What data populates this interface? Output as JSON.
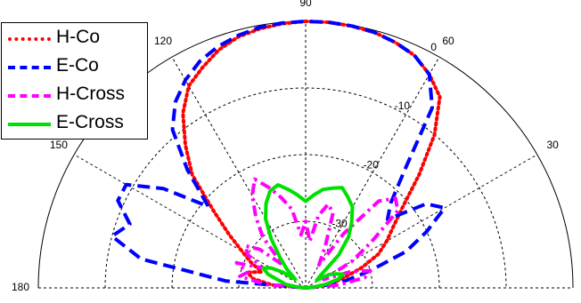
{
  "chart_data": {
    "type": "polar",
    "angle_ticks": [
      {
        "angle": 0,
        "label": "0"
      },
      {
        "angle": 30,
        "label": "30"
      },
      {
        "angle": 60,
        "label": "60"
      },
      {
        "angle": 90,
        "label": "90"
      },
      {
        "angle": 120,
        "label": "120"
      },
      {
        "angle": 150,
        "label": "150"
      },
      {
        "angle": 180,
        "label": "180"
      }
    ],
    "radial_ticks": [
      {
        "value": 0,
        "label": "0"
      },
      {
        "value": -10,
        "label": "-10"
      },
      {
        "value": -20,
        "label": "-20"
      },
      {
        "value": -30,
        "label": "-30"
      }
    ],
    "rlim": [
      -40,
      0
    ],
    "grid": true,
    "legend": {
      "placement": "top-left"
    },
    "series": [
      {
        "name": "H-Co",
        "color": "#ff0000",
        "style": "dotted",
        "points": [
          [
            0,
            -40
          ],
          [
            5,
            -38
          ],
          [
            10,
            -36
          ],
          [
            15,
            -34
          ],
          [
            20,
            -31
          ],
          [
            25,
            -28
          ],
          [
            30,
            -26
          ],
          [
            35,
            -24
          ],
          [
            40,
            -21
          ],
          [
            45,
            -16
          ],
          [
            50,
            -10
          ],
          [
            55,
            -5
          ],
          [
            60,
            -3
          ],
          [
            65,
            -1.5
          ],
          [
            70,
            -0.8
          ],
          [
            75,
            -0.3
          ],
          [
            80,
            -0.1
          ],
          [
            85,
            0
          ],
          [
            90,
            0
          ],
          [
            95,
            -0.2
          ],
          [
            100,
            -0.5
          ],
          [
            105,
            -1
          ],
          [
            110,
            -2
          ],
          [
            115,
            -3.5
          ],
          [
            120,
            -5
          ],
          [
            125,
            -8
          ],
          [
            130,
            -12
          ],
          [
            135,
            -16
          ],
          [
            140,
            -22
          ],
          [
            145,
            -26
          ],
          [
            150,
            -29
          ],
          [
            155,
            -31
          ],
          [
            160,
            -33
          ],
          [
            165,
            -31
          ],
          [
            170,
            -32
          ],
          [
            175,
            -35
          ],
          [
            180,
            -40
          ]
        ]
      },
      {
        "name": "E-Co",
        "color": "#0000ff",
        "style": "dashed",
        "points": [
          [
            0,
            -40
          ],
          [
            5,
            -38
          ],
          [
            10,
            -34
          ],
          [
            15,
            -30
          ],
          [
            20,
            -24
          ],
          [
            25,
            -20
          ],
          [
            30,
            -16
          ],
          [
            35,
            -18
          ],
          [
            40,
            -24
          ],
          [
            45,
            -22
          ],
          [
            50,
            -17
          ],
          [
            55,
            -7
          ],
          [
            60,
            -3
          ],
          [
            65,
            -1.5
          ],
          [
            70,
            -0.8
          ],
          [
            75,
            -0.3
          ],
          [
            80,
            -0.1
          ],
          [
            85,
            0
          ],
          [
            90,
            0
          ],
          [
            95,
            -0.1
          ],
          [
            100,
            -0.3
          ],
          [
            105,
            -0.8
          ],
          [
            110,
            -1.5
          ],
          [
            115,
            -2.5
          ],
          [
            120,
            -4
          ],
          [
            125,
            -6
          ],
          [
            130,
            -9
          ],
          [
            135,
            -15
          ],
          [
            140,
            -21
          ],
          [
            145,
            -14
          ],
          [
            150,
            -9
          ],
          [
            155,
            -9
          ],
          [
            160,
            -12
          ],
          [
            165,
            -10
          ],
          [
            170,
            -15
          ],
          [
            175,
            -28
          ],
          [
            180,
            -40
          ]
        ]
      },
      {
        "name": "H-Cross",
        "color": "#ff00ff",
        "style": "dashdot",
        "points": [
          [
            0,
            -40
          ],
          [
            5,
            -35
          ],
          [
            10,
            -31
          ],
          [
            15,
            -30
          ],
          [
            20,
            -33
          ],
          [
            25,
            -37
          ],
          [
            30,
            -32
          ],
          [
            35,
            -28
          ],
          [
            40,
            -22
          ],
          [
            45,
            -21
          ],
          [
            50,
            -23
          ],
          [
            55,
            -30
          ],
          [
            60,
            -36
          ],
          [
            65,
            -33
          ],
          [
            70,
            -28
          ],
          [
            75,
            -27
          ],
          [
            80,
            -29
          ],
          [
            85,
            -33
          ],
          [
            90,
            -30
          ],
          [
            95,
            -32
          ],
          [
            100,
            -28
          ],
          [
            105,
            -26
          ],
          [
            110,
            -24
          ],
          [
            115,
            -22
          ],
          [
            120,
            -24
          ],
          [
            125,
            -27
          ],
          [
            130,
            -30
          ],
          [
            135,
            -35
          ],
          [
            140,
            -31
          ],
          [
            145,
            -29
          ],
          [
            150,
            -30
          ],
          [
            155,
            -33
          ],
          [
            160,
            -29
          ],
          [
            165,
            -31
          ],
          [
            170,
            -30
          ],
          [
            175,
            -34
          ],
          [
            180,
            -40
          ]
        ]
      },
      {
        "name": "E-Cross",
        "color": "#00e000",
        "style": "solid",
        "points": [
          [
            0,
            -40
          ],
          [
            5,
            -39
          ],
          [
            10,
            -37
          ],
          [
            15,
            -35
          ],
          [
            20,
            -34
          ],
          [
            25,
            -35
          ],
          [
            30,
            -36
          ],
          [
            35,
            -38
          ],
          [
            40,
            -37
          ],
          [
            45,
            -33
          ],
          [
            50,
            -30
          ],
          [
            55,
            -28
          ],
          [
            60,
            -26
          ],
          [
            65,
            -25
          ],
          [
            70,
            -24
          ],
          [
            75,
            -24.5
          ],
          [
            80,
            -25
          ],
          [
            85,
            -26
          ],
          [
            90,
            -27
          ],
          [
            95,
            -26
          ],
          [
            100,
            -25
          ],
          [
            105,
            -24
          ],
          [
            110,
            -24.5
          ],
          [
            115,
            -26
          ],
          [
            120,
            -28
          ],
          [
            125,
            -31
          ],
          [
            130,
            -34
          ],
          [
            135,
            -36
          ],
          [
            140,
            -38
          ],
          [
            145,
            -36
          ],
          [
            150,
            -34
          ],
          [
            155,
            -33
          ],
          [
            160,
            -34
          ],
          [
            165,
            -36
          ],
          [
            170,
            -37
          ],
          [
            175,
            -39
          ],
          [
            180,
            -40
          ]
        ]
      }
    ]
  }
}
